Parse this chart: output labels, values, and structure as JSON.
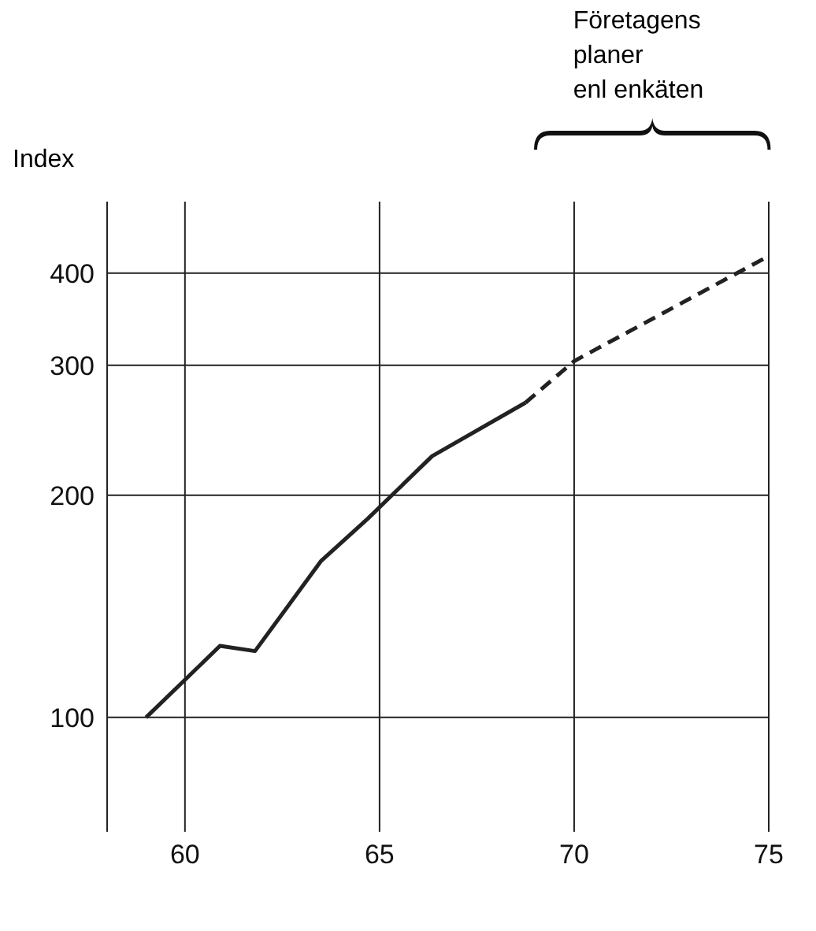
{
  "chart_data": {
    "type": "line",
    "ylabel": "Index",
    "annotations": [
      "Företagens\nplaner\nenl enkäten"
    ],
    "series": [
      {
        "color": "#222222",
        "line_style": "solid",
        "x": [
          59,
          60.9,
          61.8,
          63.5,
          64.7,
          66.35,
          68.75
        ],
        "values": [
          100,
          125,
          123,
          163,
          186,
          226,
          267
        ]
      },
      {
        "color": "#222222",
        "line_style": "dashed",
        "x": [
          68.75,
          70,
          75
        ],
        "values": [
          267,
          304,
          422
        ]
      }
    ],
    "xlim": [
      58,
      75
    ],
    "xticks": [
      60,
      65,
      70,
      75
    ],
    "ylim": [
      70,
      500
    ],
    "yticks": [
      100,
      200,
      300,
      400
    ],
    "log": true,
    "grid": true,
    "marker": "none"
  }
}
